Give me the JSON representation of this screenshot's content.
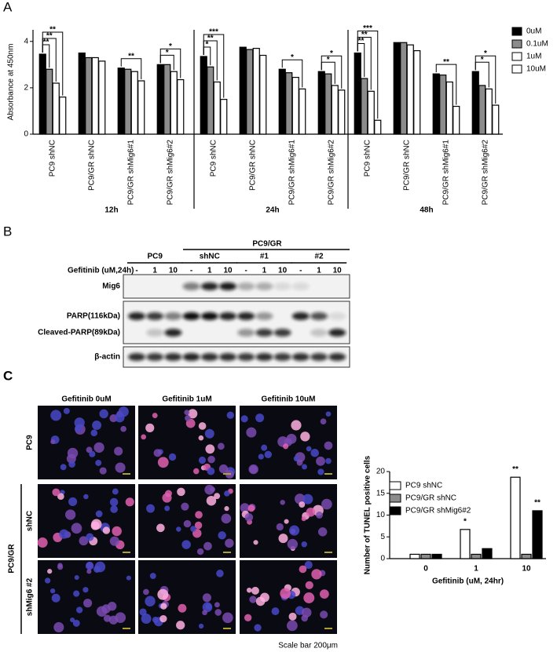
{
  "panel_labels": [
    "A",
    "B",
    "C"
  ],
  "chart_data": [
    {
      "type": "bar",
      "y_label": "Absorbance at 450nm",
      "categories": [
        "PC9 shNC",
        "PC9/GR shNC",
        "PC9/GR shMig6#1",
        "PC9/GR shMig6#2",
        "PC9 shNC",
        "PC9/GR shNC",
        "PC9/GR shMig6#1",
        "PC9/GR shMig6#2",
        "PC9 shNC",
        "PC9/GR shNC",
        "PC9/GR shMig6#1",
        "PC9/GR shMig6#2"
      ],
      "group_labels": [
        "12h",
        "24h",
        "48h"
      ],
      "series": [
        {
          "name": "0uM",
          "color": "#000000",
          "values": [
            3.45,
            3.5,
            2.85,
            3.0,
            3.35,
            3.75,
            2.8,
            2.7,
            3.5,
            3.95,
            2.6,
            2.7
          ]
        },
        {
          "name": "0.1uM",
          "color": "#8c8c8c",
          "values": [
            2.8,
            3.3,
            2.8,
            3.0,
            2.9,
            3.65,
            2.65,
            2.6,
            2.4,
            3.95,
            2.55,
            2.1
          ]
        },
        {
          "name": "1uM",
          "color": "#ffffff",
          "values": [
            2.2,
            3.3,
            2.7,
            2.7,
            2.25,
            3.7,
            2.45,
            2.1,
            1.85,
            3.85,
            2.25,
            1.95
          ]
        },
        {
          "name": "10uM",
          "color": "#ffffff",
          "values": [
            1.6,
            3.15,
            2.3,
            2.35,
            1.5,
            3.4,
            1.95,
            1.9,
            0.6,
            3.6,
            1.2,
            1.25
          ]
        }
      ],
      "ylim": [
        0,
        4.5
      ],
      "yticks": [
        0,
        2,
        4
      ],
      "annotations": [
        {
          "category": 0,
          "from_series": 0,
          "to_series": 1,
          "label": "**"
        },
        {
          "category": 0,
          "from_series": 0,
          "to_series": 2,
          "label": "**"
        },
        {
          "category": 0,
          "from_series": 0,
          "to_series": 3,
          "label": "**"
        },
        {
          "category": 2,
          "from_series": 0,
          "to_series": 3,
          "label": "**"
        },
        {
          "category": 3,
          "from_series": 0,
          "to_series": 2,
          "label": "*"
        },
        {
          "category": 3,
          "from_series": 0,
          "to_series": 3,
          "label": "*"
        },
        {
          "category": 4,
          "from_series": 0,
          "to_series": 1,
          "label": "*"
        },
        {
          "category": 4,
          "from_series": 0,
          "to_series": 2,
          "label": "**"
        },
        {
          "category": 4,
          "from_series": 0,
          "to_series": 3,
          "label": "***"
        },
        {
          "category": 6,
          "from_series": 0,
          "to_series": 3,
          "label": "*"
        },
        {
          "category": 7,
          "from_series": 0,
          "to_series": 2,
          "label": "*"
        },
        {
          "category": 7,
          "from_series": 0,
          "to_series": 3,
          "label": "*"
        },
        {
          "category": 8,
          "from_series": 0,
          "to_series": 1,
          "label": "**"
        },
        {
          "category": 8,
          "from_series": 0,
          "to_series": 2,
          "label": "**"
        },
        {
          "category": 8,
          "from_series": 0,
          "to_series": 3,
          "label": "***"
        },
        {
          "category": 10,
          "from_series": 0,
          "to_series": 3,
          "label": "**"
        },
        {
          "category": 11,
          "from_series": 0,
          "to_series": 2,
          "label": "*"
        },
        {
          "category": 11,
          "from_series": 0,
          "to_series": 3,
          "label": "*"
        }
      ]
    },
    {
      "type": "bar",
      "x_label": "Gefitinib (uM, 24hr)",
      "y_label": "Number of TUNEL positive cells",
      "categories": [
        "0",
        "1",
        "10"
      ],
      "series": [
        {
          "name": "PC9 shNC",
          "color": "#ffffff",
          "values": [
            1,
            6.7,
            18.7
          ]
        },
        {
          "name": "PC9/GR shNC",
          "color": "#8c8c8c",
          "values": [
            1,
            1,
            1
          ]
        },
        {
          "name": "PC9/GR shMig6#2",
          "color": "#000000",
          "values": [
            1,
            2.3,
            11
          ]
        }
      ],
      "ylim": [
        0,
        20
      ],
      "yticks": [
        0,
        5,
        10,
        15,
        20
      ],
      "annotations": [
        {
          "category": 1,
          "series": 0,
          "label": "*"
        },
        {
          "category": 2,
          "series": 0,
          "label": "**"
        },
        {
          "category": 2,
          "series": 2,
          "label": "**"
        }
      ]
    }
  ],
  "blot": {
    "gefitinib_label": "Gefitinib (uM,24h)",
    "top_group": "PC9/GR",
    "groups": [
      "PC9",
      "shNC",
      "#1",
      "#2"
    ],
    "doses": [
      "-",
      "1",
      "10",
      "-",
      "1",
      "10",
      "-",
      "1",
      "10",
      "-",
      "1",
      "10"
    ],
    "rows": [
      "Mig6",
      "PARP(116kDa)",
      "Cleaved-PARP(89kDa)",
      "β-actin"
    ]
  },
  "micrographs": {
    "columns": [
      "Gefitinib 0uM",
      "Gefitinib 1uM",
      "Gefitinib 10uM"
    ],
    "rows": [
      "PC9",
      "shNC",
      "shMig6 #2"
    ],
    "row_group": "PC9/GR",
    "scale_bar": "Scale bar 200μm"
  }
}
